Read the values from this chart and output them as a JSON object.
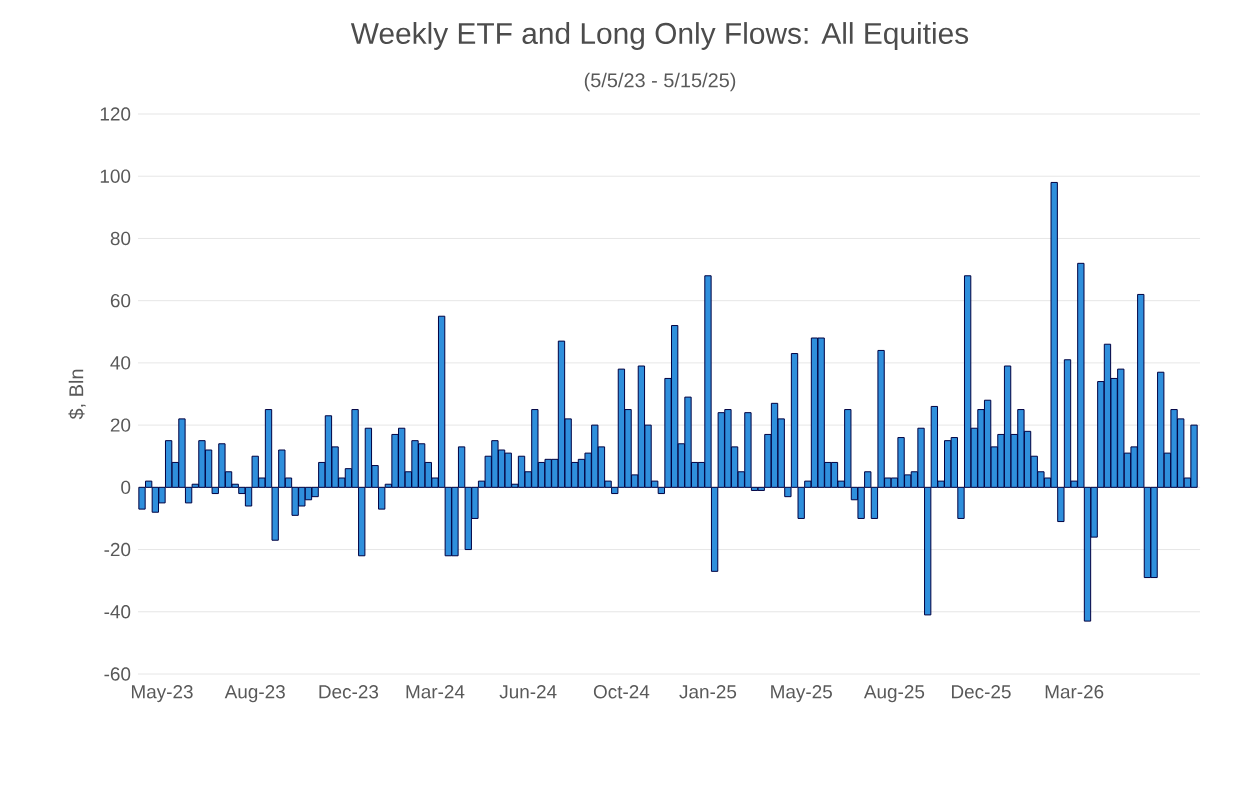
{
  "chart_data": {
    "type": "bar",
    "title": "Weekly ETF and Long Only Flows:  All Equities",
    "subtitle": "(5/5/23 - 5/15/25)",
    "ylabel": "$, Bln",
    "categories": [
      null,
      null,
      null,
      "May-23",
      null,
      null,
      null,
      null,
      null,
      null,
      null,
      null,
      null,
      null,
      null,
      null,
      null,
      "Aug-23",
      null,
      null,
      null,
      null,
      null,
      null,
      null,
      null,
      null,
      null,
      null,
      null,
      null,
      "Dec-23",
      null,
      null,
      null,
      null,
      null,
      null,
      null,
      null,
      null,
      null,
      null,
      null,
      "Mar-24",
      null,
      null,
      null,
      null,
      null,
      null,
      null,
      null,
      null,
      null,
      null,
      null,
      null,
      "Jun-24",
      null,
      null,
      null,
      null,
      null,
      null,
      null,
      null,
      null,
      null,
      null,
      null,
      null,
      "Oct-24",
      null,
      null,
      null,
      null,
      null,
      null,
      null,
      null,
      null,
      null,
      null,
      null,
      "Jan-25",
      null,
      null,
      null,
      null,
      null,
      null,
      null,
      null,
      null,
      null,
      null,
      null,
      null,
      "May-25",
      null,
      null,
      null,
      null,
      null,
      null,
      null,
      null,
      null,
      null,
      null,
      null,
      null,
      "Aug-25",
      null,
      null,
      null,
      null,
      null,
      null,
      null,
      null,
      null,
      null,
      null,
      null,
      "Dec-25",
      null,
      null,
      null,
      null,
      null,
      null,
      null,
      null,
      null,
      null,
      null,
      null,
      null,
      "Mar-26",
      null,
      null,
      null,
      null,
      null,
      null,
      null,
      null,
      null,
      null,
      null,
      null,
      null,
      null,
      null,
      null,
      null,
      null
    ],
    "values": [
      -7,
      2,
      -8,
      -5,
      15,
      8,
      22,
      -5,
      1,
      15,
      12,
      -2,
      14,
      5,
      1,
      -2,
      -6,
      10,
      3,
      25,
      -17,
      12,
      3,
      -9,
      -6,
      -4,
      -3,
      8,
      23,
      13,
      3,
      6,
      25,
      -22,
      19,
      7,
      -7,
      1,
      17,
      19,
      5,
      15,
      14,
      8,
      3,
      55,
      -22,
      -22,
      13,
      -20,
      -10,
      2,
      10,
      15,
      12,
      11,
      1,
      10,
      5,
      25,
      8,
      9,
      9,
      47,
      22,
      8,
      9,
      11,
      20,
      13,
      2,
      -2,
      38,
      25,
      4,
      39,
      20,
      2,
      -2,
      35,
      52,
      14,
      29,
      8,
      8,
      68,
      -27,
      24,
      25,
      13,
      5,
      24,
      -1,
      -1,
      17,
      27,
      22,
      -3,
      43,
      -10,
      2,
      48,
      48,
      8,
      8,
      2,
      25,
      -4,
      -10,
      5,
      -10,
      44,
      3,
      3,
      16,
      4,
      5,
      19,
      -41,
      26,
      2,
      15,
      16,
      -10,
      68,
      19,
      25,
      28,
      13,
      17,
      39,
      17,
      25,
      18,
      10,
      5,
      3,
      98,
      -11,
      41,
      2,
      72,
      -43,
      -16,
      34,
      46,
      35,
      38,
      11,
      13,
      62,
      -29,
      -29,
      37,
      11,
      25,
      22,
      3,
      20
    ],
    "color": "#2f8fdc",
    "ylim": [
      -60,
      120
    ],
    "yticks": [
      -60,
      -40,
      -20,
      0,
      20,
      40,
      60,
      80,
      100,
      120
    ],
    "grid": "y"
  }
}
